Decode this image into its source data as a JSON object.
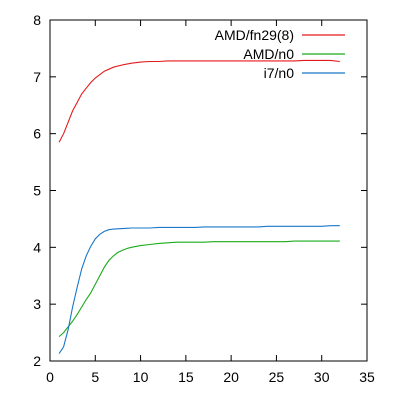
{
  "chart_data": {
    "type": "line",
    "title": "",
    "xlabel": "",
    "ylabel": "",
    "xlim": [
      0,
      35
    ],
    "ylim": [
      2,
      8
    ],
    "xticks": [
      0,
      5,
      10,
      15,
      20,
      25,
      30,
      35
    ],
    "yticks": [
      2,
      3,
      4,
      5,
      6,
      7,
      8
    ],
    "grid": false,
    "legend": "top-right",
    "series": [
      {
        "name": "AMD/fn29(8)",
        "color": "#e41a1c",
        "x": [
          1,
          1.5,
          2,
          2.5,
          3,
          3.5,
          4,
          4.5,
          5,
          6,
          7,
          8,
          9,
          10,
          11,
          12,
          13,
          14,
          15,
          16,
          17,
          18,
          19,
          20,
          21,
          22,
          23,
          24,
          25,
          26,
          27,
          28,
          29,
          30,
          31,
          32
        ],
        "y": [
          5.85,
          6.0,
          6.2,
          6.4,
          6.55,
          6.7,
          6.8,
          6.9,
          6.98,
          7.1,
          7.17,
          7.21,
          7.24,
          7.26,
          7.27,
          7.27,
          7.28,
          7.28,
          7.28,
          7.28,
          7.28,
          7.28,
          7.28,
          7.28,
          7.28,
          7.28,
          7.28,
          7.28,
          7.28,
          7.28,
          7.28,
          7.29,
          7.29,
          7.29,
          7.29,
          7.27
        ]
      },
      {
        "name": "AMD/n0",
        "color": "#1aab1a",
        "x": [
          1,
          1.5,
          2,
          2.5,
          3,
          3.5,
          4,
          4.5,
          5,
          5.5,
          6,
          6.5,
          7,
          7.5,
          8,
          8.5,
          9,
          10,
          11,
          12,
          13,
          14,
          15,
          16,
          17,
          18,
          19,
          20,
          21,
          22,
          23,
          24,
          25,
          26,
          27,
          28,
          29,
          30,
          31,
          32
        ],
        "y": [
          2.43,
          2.5,
          2.6,
          2.7,
          2.82,
          2.95,
          3.08,
          3.2,
          3.35,
          3.5,
          3.65,
          3.77,
          3.85,
          3.91,
          3.95,
          3.98,
          4.0,
          4.03,
          4.05,
          4.07,
          4.08,
          4.09,
          4.09,
          4.09,
          4.09,
          4.1,
          4.1,
          4.1,
          4.1,
          4.1,
          4.1,
          4.1,
          4.1,
          4.1,
          4.11,
          4.11,
          4.11,
          4.11,
          4.11,
          4.11
        ]
      },
      {
        "name": "i7/n0",
        "color": "#1a78c8",
        "x": [
          1,
          1.5,
          2,
          2.5,
          3,
          3.5,
          4,
          4.5,
          5,
          5.5,
          6,
          6.5,
          7,
          8,
          9,
          10,
          11,
          12,
          13,
          14,
          15,
          16,
          17,
          18,
          19,
          20,
          21,
          22,
          23,
          24,
          25,
          26,
          27,
          28,
          29,
          30,
          31,
          32
        ],
        "y": [
          2.13,
          2.25,
          2.55,
          2.95,
          3.3,
          3.62,
          3.85,
          4.02,
          4.15,
          4.23,
          4.28,
          4.31,
          4.32,
          4.33,
          4.34,
          4.34,
          4.34,
          4.35,
          4.35,
          4.35,
          4.35,
          4.35,
          4.36,
          4.36,
          4.36,
          4.36,
          4.36,
          4.36,
          4.36,
          4.37,
          4.37,
          4.37,
          4.37,
          4.37,
          4.37,
          4.37,
          4.38,
          4.38
        ]
      }
    ]
  }
}
